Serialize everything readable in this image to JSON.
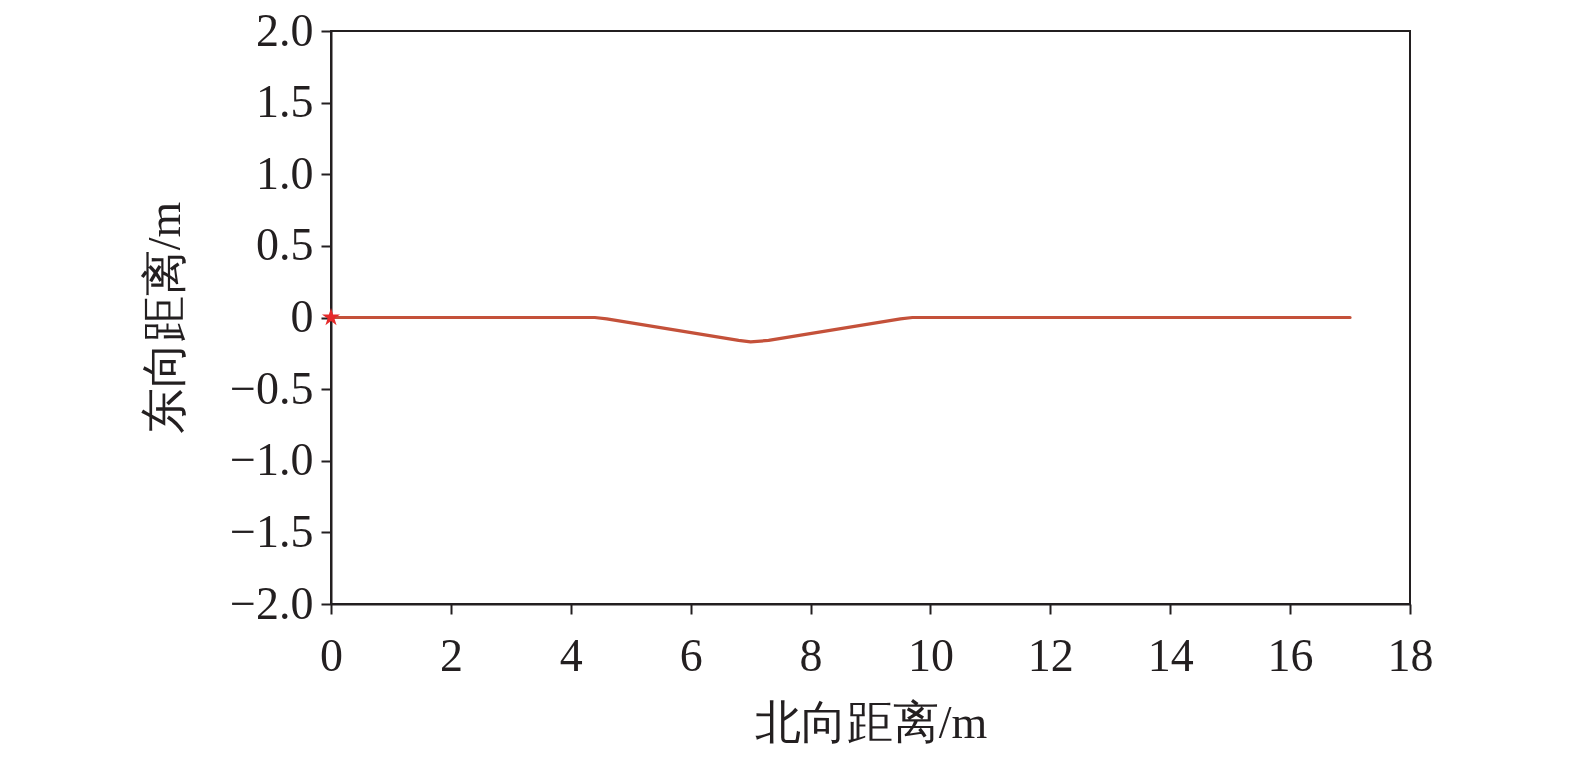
{
  "chart_data": {
    "type": "line",
    "xlabel": "北向距离/m",
    "ylabel": "东向距离/m",
    "xlim": [
      0,
      18
    ],
    "xticks": [
      0,
      2,
      4,
      6,
      8,
      10,
      12,
      14,
      16,
      18
    ],
    "ylim": [
      -2,
      2
    ],
    "yticks": [
      {
        "value": -2,
        "label": "−2.0"
      },
      {
        "value": -1.5,
        "label": "−1.5"
      },
      {
        "value": -1,
        "label": "−1.0"
      },
      {
        "value": -0.5,
        "label": "−0.5"
      },
      0,
      0.5,
      {
        "value": 1,
        "label": "1.0"
      },
      1.5,
      {
        "value": 2,
        "label": "2.0"
      }
    ],
    "grid": false,
    "line_style": "solid",
    "marker": "none",
    "series": [
      {
        "color": "#c4513a",
        "x": [
          0,
          4.4,
          4.6,
          6.8,
          7.0,
          7.3,
          9.5,
          9.7,
          17
        ],
        "values": [
          0,
          0,
          -0.01,
          -0.16,
          -0.17,
          -0.16,
          -0.01,
          0,
          0
        ]
      },
      {
        "type": "scatter",
        "marker": "star",
        "color": "#e52a2a",
        "x": [
          0
        ],
        "values": [
          0
        ]
      }
    ]
  }
}
